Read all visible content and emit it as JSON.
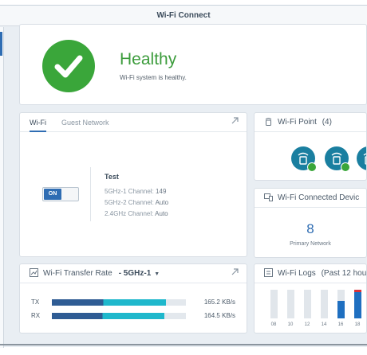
{
  "window": {
    "title": "Wi-Fi Connect"
  },
  "health": {
    "status": "Healthy",
    "message": "Wi-Fi system is healthy.",
    "color": "#3aa63a"
  },
  "wifi": {
    "tabs": [
      {
        "label": "Wi-Fi",
        "active": true
      },
      {
        "label": "Guest Network",
        "active": false
      }
    ],
    "toggle_label": "ON",
    "ssid": "Test",
    "channels": [
      {
        "label": "5GHz-1 Channel:",
        "value": "149"
      },
      {
        "label": "5GHz-2 Channel:",
        "value": "Auto"
      },
      {
        "label": "2.4GHz Channel:",
        "value": "Auto"
      }
    ]
  },
  "wifi_point": {
    "title": "Wi-Fi Point",
    "count": "(4)",
    "point_color": "#1a7fa0",
    "status": "online"
  },
  "connected_devices": {
    "title": "Wi-Fi Connected Devic",
    "count": "8",
    "label": "Primary Network"
  },
  "transfer": {
    "title": "Wi-Fi Transfer Rate",
    "band": "- 5GHz-1",
    "rows": [
      {
        "label": "TX",
        "value": "165.2 KB/s",
        "fraction": 0.85
      },
      {
        "label": "RX",
        "value": "164.5 KB/s",
        "fraction": 0.84
      }
    ],
    "colors": {
      "dark": "#2f5c94",
      "light": "#1fb8cc"
    }
  },
  "logs": {
    "title": "Wi-Fi Logs",
    "period": "(Past 12 hou",
    "ticks": [
      "08",
      "10",
      "12",
      "14",
      "16",
      "18"
    ]
  },
  "icons": {
    "expand": "expand-arrow-icon",
    "point": "wifi-point-icon",
    "devices": "devices-icon",
    "transfer": "chart-icon",
    "logs": "logs-icon"
  }
}
